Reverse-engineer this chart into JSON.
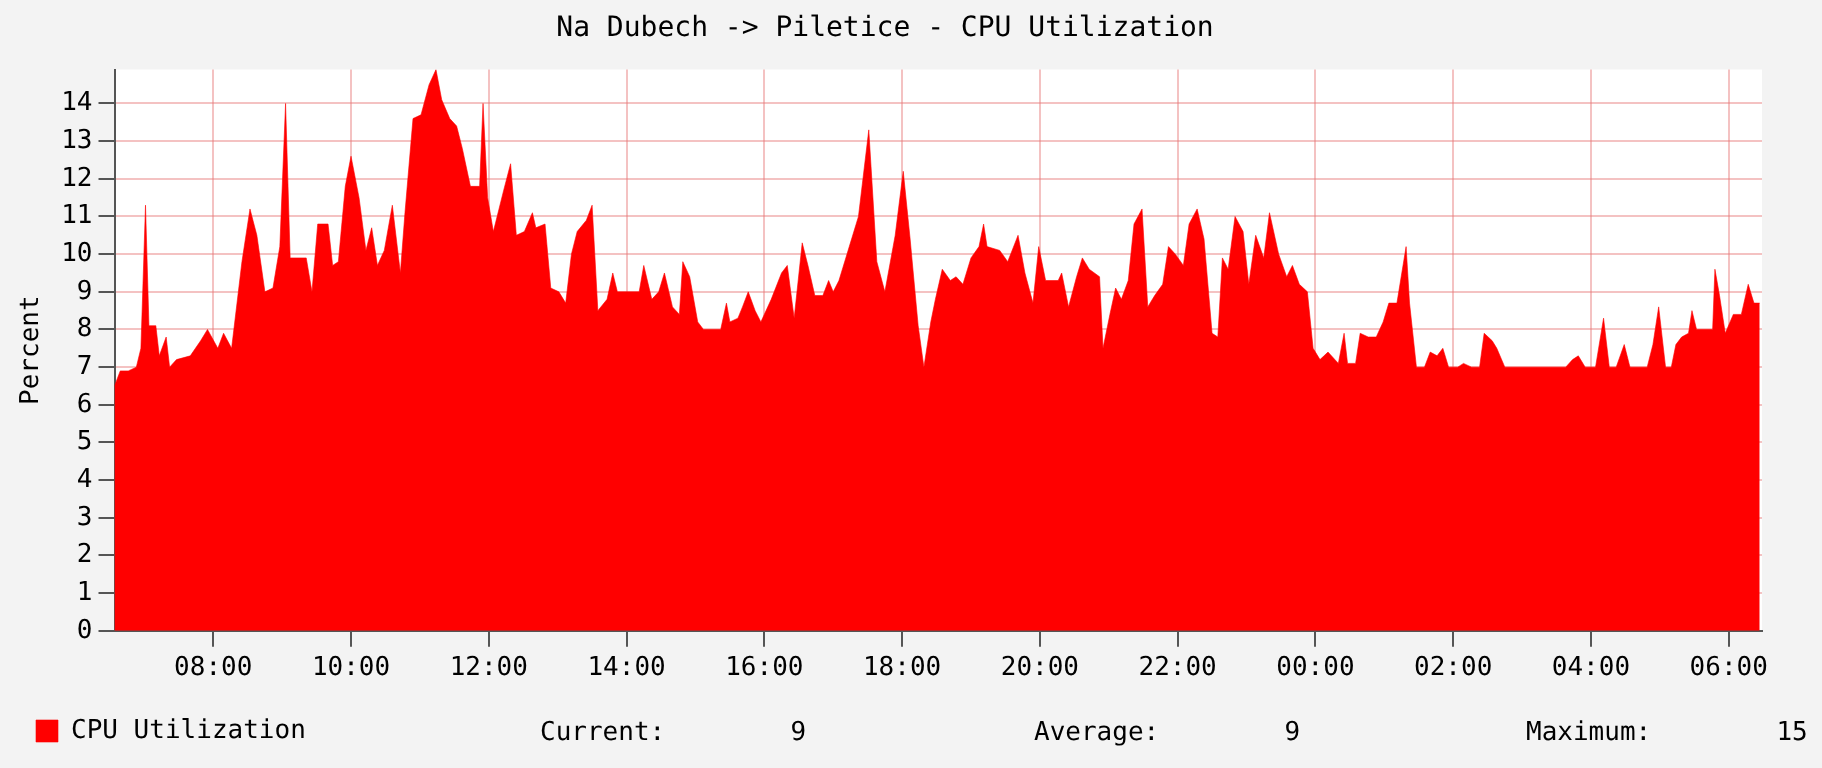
{
  "chart_data": {
    "type": "area",
    "title": "Na Dubech -> Piletice - CPU Utilization",
    "ylabel": "Percent",
    "x": [
      "--01-01T06:34",
      "--01-01T06:39",
      "--01-01T06:46",
      "--01-01T06:53",
      "--01-01T06:57",
      "--01-01T07:01",
      "--01-01T07:04",
      "--01-01T07:10",
      "--01-01T07:13",
      "--01-01T07:19",
      "--01-01T07:22",
      "--01-01T07:28",
      "--01-01T07:40",
      "--01-01T07:49",
      "--01-01T07:55",
      "--01-01T08:04",
      "--01-01T08:09",
      "--01-01T08:16",
      "--01-01T08:25",
      "--01-01T08:32",
      "--01-01T08:38",
      "--01-01T08:45",
      "--01-01T08:52",
      "--01-01T08:58",
      "--01-01T09:03",
      "--01-01T09:07",
      "--01-01T09:21",
      "--01-01T09:26",
      "--01-01T09:31",
      "--01-01T09:40",
      "--01-01T09:44",
      "--01-01T09:49",
      "--01-01T09:55",
      "--01-01T10:00",
      "--01-01T10:07",
      "--01-01T10:13",
      "--01-01T10:18",
      "--01-01T10:23",
      "--01-01T10:29",
      "--01-01T10:36",
      "--01-01T10:43",
      "--01-01T10:47",
      "--01-01T10:54",
      "--01-01T11:01",
      "--01-01T11:08",
      "--01-01T11:14",
      "--01-01T11:19",
      "--01-01T11:26",
      "--01-01T11:32",
      "--01-01T11:37",
      "--01-01T11:44",
      "--01-01T11:52",
      "--01-01T11:55",
      "--01-01T11:59",
      "--01-01T12:04",
      "--01-01T12:13",
      "--01-01T12:19",
      "--01-01T12:24",
      "--01-01T12:31",
      "--01-01T12:38",
      "--01-01T12:41",
      "--01-01T12:49",
      "--01-01T12:54",
      "--01-01T13:01",
      "--01-01T13:07",
      "--01-01T13:12",
      "--01-01T13:17",
      "--01-01T13:25",
      "--01-01T13:30",
      "--01-01T13:35",
      "--01-01T13:43",
      "--01-01T13:48",
      "--01-01T13:52",
      "--01-01T14:11",
      "--01-01T14:15",
      "--01-01T14:22",
      "--01-01T14:28",
      "--01-01T14:33",
      "--01-01T14:40",
      "--01-01T14:46",
      "--01-01T14:49",
      "--01-01T14:55",
      "--01-01T15:02",
      "--01-01T15:07",
      "--01-01T15:22",
      "--01-01T15:27",
      "--01-01T15:30",
      "--01-01T15:37",
      "--01-01T15:41",
      "--01-01T15:46",
      "--01-01T15:52",
      "--01-01T15:57",
      "--01-01T16:06",
      "--01-01T16:15",
      "--01-01T16:20",
      "--01-01T16:26",
      "--01-01T16:33",
      "--01-01T16:38",
      "--01-01T16:44",
      "--01-01T16:51",
      "--01-01T16:56",
      "--01-01T17:00",
      "--01-01T17:05",
      "--01-01T17:14",
      "--01-01T17:22",
      "--01-01T17:31",
      "--01-01T17:38",
      "--01-01T17:45",
      "--01-01T17:54",
      "--01-01T18:01",
      "--01-01T18:07",
      "--01-01T18:14",
      "--01-01T18:19",
      "--01-01T18:25",
      "--01-01T18:29",
      "--01-01T18:35",
      "--01-01T18:42",
      "--01-01T18:47",
      "--01-01T18:53",
      "--01-01T19:00",
      "--01-01T19:07",
      "--01-01T19:11",
      "--01-01T19:14",
      "--01-01T19:25",
      "--01-01T19:32",
      "--01-01T19:41",
      "--01-01T19:47",
      "--01-01T19:54",
      "--01-01T19:59",
      "--01-01T20:05",
      "--01-01T20:16",
      "--01-01T20:19",
      "--01-01T20:25",
      "--01-01T20:32",
      "--01-01T20:37",
      "--01-01T20:43",
      "--01-01T20:52",
      "--01-01T20:55",
      "--01-01T21:01",
      "--01-01T21:06",
      "--01-01T21:11",
      "--01-01T21:17",
      "--01-01T21:22",
      "--01-01T21:29",
      "--01-01T21:34",
      "--01-01T21:40",
      "--01-01T21:47",
      "--01-01T21:52",
      "--01-01T21:58",
      "--01-01T22:05",
      "--01-01T22:10",
      "--01-01T22:17",
      "--01-01T22:23",
      "--01-01T22:30",
      "--01-01T22:35",
      "--01-01T22:39",
      "--01-01T22:44",
      "--01-01T22:50",
      "--01-01T22:57",
      "--01-01T23:02",
      "--01-01T23:08",
      "--01-01T23:15",
      "--01-01T23:20",
      "--01-01T23:28",
      "--01-01T23:35",
      "--01-01T23:40",
      "--01-01T23:46",
      "--01-01T23:53",
      "--01-01T23:58",
      "--01-02T00:04",
      "--01-02T00:11",
      "--01-02T00:20",
      "--01-02T00:25",
      "--01-02T00:28",
      "--01-02T00:35",
      "--01-02T00:39",
      "--01-02T00:46",
      "--01-02T00:53",
      "--01-02T00:59",
      "--01-02T01:04",
      "--01-02T01:11",
      "--01-02T01:19",
      "--01-02T01:22",
      "--01-02T01:28",
      "--01-02T01:35",
      "--01-02T01:40",
      "--01-02T01:46",
      "--01-02T01:51",
      "--01-02T01:56",
      "--01-02T02:04",
      "--01-02T02:09",
      "--01-02T02:16",
      "--01-02T02:23",
      "--01-02T02:27",
      "--01-02T02:34",
      "--01-02T02:38",
      "--01-02T02:45",
      "--01-02T03:38",
      "--01-02T03:44",
      "--01-02T03:49",
      "--01-02T03:55",
      "--01-02T04:04",
      "--01-02T04:11",
      "--01-02T04:16",
      "--01-02T04:22",
      "--01-02T04:29",
      "--01-02T04:34",
      "--01-02T04:49",
      "--01-02T04:54",
      "--01-02T04:59",
      "--01-02T05:05",
      "--01-02T05:10",
      "--01-02T05:14",
      "--01-02T05:19",
      "--01-02T05:25",
      "--01-02T05:28",
      "--01-02T05:32",
      "--01-02T05:46",
      "--01-02T05:48",
      "--01-02T05:52",
      "--01-02T05:57",
      "--01-02T06:04",
      "--01-02T06:11",
      "--01-02T06:17",
      "--01-02T06:22",
      "--01-02T06:27"
    ],
    "series": [
      {
        "name": "CPU Utilization",
        "color": "#ff0000",
        "values": [
          6.5,
          6.9,
          6.9,
          7.0,
          7.5,
          11.3,
          8.1,
          8.1,
          7.3,
          7.8,
          7.0,
          7.2,
          7.3,
          7.7,
          8.0,
          7.5,
          7.9,
          7.5,
          9.8,
          11.2,
          10.5,
          9.0,
          9.1,
          10.2,
          14.0,
          9.9,
          9.9,
          9.0,
          10.8,
          10.8,
          9.7,
          9.8,
          11.8,
          12.6,
          11.5,
          10.1,
          10.7,
          9.7,
          10.1,
          11.3,
          9.5,
          11.1,
          13.6,
          13.7,
          14.5,
          14.9,
          14.1,
          13.6,
          13.4,
          12.8,
          11.8,
          11.8,
          14.0,
          11.5,
          10.6,
          11.7,
          12.4,
          10.5,
          10.6,
          11.1,
          10.7,
          10.8,
          9.1,
          9.0,
          8.7,
          10.0,
          10.6,
          10.9,
          11.3,
          8.5,
          8.8,
          9.5,
          9.0,
          9.0,
          9.7,
          8.8,
          9.0,
          9.5,
          8.6,
          8.4,
          9.8,
          9.4,
          8.2,
          8.0,
          8.0,
          8.7,
          8.2,
          8.3,
          8.6,
          9.0,
          8.5,
          8.2,
          8.8,
          9.5,
          9.7,
          8.3,
          10.3,
          9.7,
          8.9,
          8.9,
          9.3,
          9.0,
          9.3,
          10.2,
          11.0,
          13.3,
          9.8,
          9.0,
          10.5,
          12.2,
          10.4,
          8.1,
          7.0,
          8.2,
          8.8,
          9.6,
          9.3,
          9.4,
          9.2,
          9.9,
          10.2,
          10.8,
          10.2,
          10.1,
          9.8,
          10.5,
          9.5,
          8.7,
          10.2,
          9.3,
          9.3,
          9.5,
          8.6,
          9.4,
          9.9,
          9.6,
          9.4,
          7.5,
          8.4,
          9.1,
          8.8,
          9.3,
          10.8,
          11.2,
          8.6,
          8.9,
          9.2,
          10.2,
          10.0,
          9.7,
          10.8,
          11.2,
          10.4,
          7.9,
          7.8,
          9.9,
          9.6,
          11.0,
          10.6,
          9.2,
          10.5,
          9.9,
          11.1,
          10.0,
          9.4,
          9.7,
          9.2,
          9.0,
          7.5,
          7.2,
          7.4,
          7.1,
          7.9,
          7.1,
          7.1,
          7.9,
          7.8,
          7.8,
          8.2,
          8.7,
          8.7,
          10.2,
          8.7,
          7.0,
          7.0,
          7.4,
          7.3,
          7.5,
          7.0,
          7.0,
          7.1,
          7.0,
          7.0,
          7.9,
          7.7,
          7.5,
          7.0,
          7.0,
          7.2,
          7.3,
          7.0,
          7.0,
          8.3,
          7.0,
          7.0,
          7.6,
          7.0,
          7.0,
          7.6,
          8.6,
          7.0,
          7.0,
          7.6,
          7.8,
          7.9,
          8.5,
          8.0,
          8.0,
          9.6,
          8.9,
          7.9,
          8.4,
          8.4,
          9.2,
          8.7,
          8.7
        ]
      }
    ],
    "xlim": [
      "--01-01T06:34",
      "--01-02T06:29"
    ],
    "xticks": [
      {
        "value": "--01-01T08:00",
        "label": "08:00"
      },
      {
        "value": "--01-01T10:00",
        "label": "10:00"
      },
      {
        "value": "--01-01T12:00",
        "label": "12:00"
      },
      {
        "value": "--01-01T14:00",
        "label": "14:00"
      },
      {
        "value": "--01-01T16:00",
        "label": "16:00"
      },
      {
        "value": "--01-01T18:00",
        "label": "18:00"
      },
      {
        "value": "--01-01T20:00",
        "label": "20:00"
      },
      {
        "value": "--01-01T22:00",
        "label": "22:00"
      },
      {
        "value": "--01-02T00:00",
        "label": "00:00"
      },
      {
        "value": "--01-02T02:00",
        "label": "02:00"
      },
      {
        "value": "--01-02T04:00",
        "label": "04:00"
      },
      {
        "value": "--01-02T06:00",
        "label": "06:00"
      }
    ],
    "ylim": [
      0,
      14.9
    ],
    "yticks": [
      0,
      1,
      2,
      3,
      4,
      5,
      6,
      7,
      8,
      9,
      10,
      11,
      12,
      13,
      14
    ],
    "grid": true,
    "legend": "bottom left",
    "annotations": [
      "Current:        9",
      "Average:        9",
      "Maximum:        15"
    ]
  }
}
